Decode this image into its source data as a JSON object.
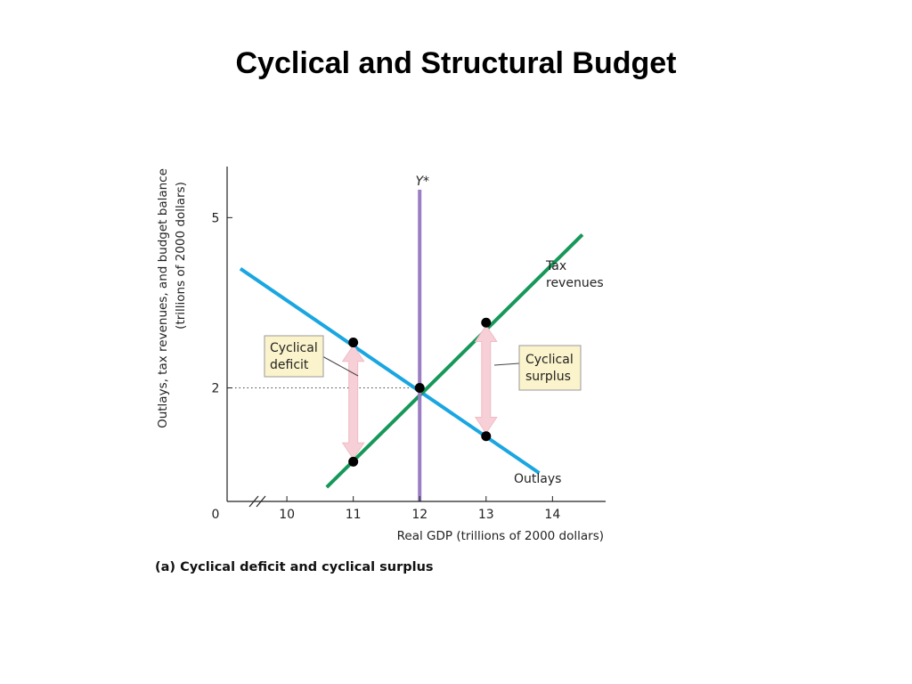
{
  "slide": {
    "title": "Cyclical and Structural Budget"
  },
  "chart_data": {
    "type": "line",
    "caption": "(a) Cyclical deficit and cyclical surplus",
    "xlabel": "Real GDP (trillions of 2000 dollars)",
    "ylabel_line1": "Outlays, tax revenues, and budget balance",
    "ylabel_line2": "(trillions of 2000 dollars)",
    "origin_label": "0",
    "xlim": [
      9.1,
      14.8
    ],
    "ylim": [
      0,
      5.9
    ],
    "x_ticks": [
      10,
      11,
      12,
      13,
      14
    ],
    "y_ticks": [
      2,
      5
    ],
    "axis_break": true,
    "series": [
      {
        "name": "Outlays",
        "color": "#1aa6e0",
        "points": [
          [
            9.3,
            4.1
          ],
          [
            13.8,
            0.5
          ]
        ]
      },
      {
        "name": "Tax revenues",
        "color": "#16985a",
        "points": [
          [
            10.6,
            0.25
          ],
          [
            14.45,
            4.7
          ]
        ]
      }
    ],
    "potential_gdp": {
      "label": "Y*",
      "x": 12,
      "color": "#9b7ec4"
    },
    "reference_line": {
      "y": 2,
      "style": "dotted"
    },
    "points": [
      {
        "x": 11,
        "y": 2.8
      },
      {
        "x": 11,
        "y": 0.7
      },
      {
        "x": 12,
        "y": 2
      },
      {
        "x": 13,
        "y": 3.15
      },
      {
        "x": 13,
        "y": 1.15
      }
    ],
    "annotations": [
      {
        "text_lines": [
          "Cyclical",
          "deficit"
        ],
        "x": 11,
        "y_from": 2.75,
        "y_to": 0.75
      },
      {
        "text_lines": [
          "Cyclical",
          "surplus"
        ],
        "x": 13,
        "y_from": 3.1,
        "y_to": 1.2
      }
    ],
    "series_labels": [
      {
        "lines": [
          "Tax",
          "revenues"
        ]
      },
      {
        "lines": [
          "Outlays"
        ]
      }
    ]
  }
}
